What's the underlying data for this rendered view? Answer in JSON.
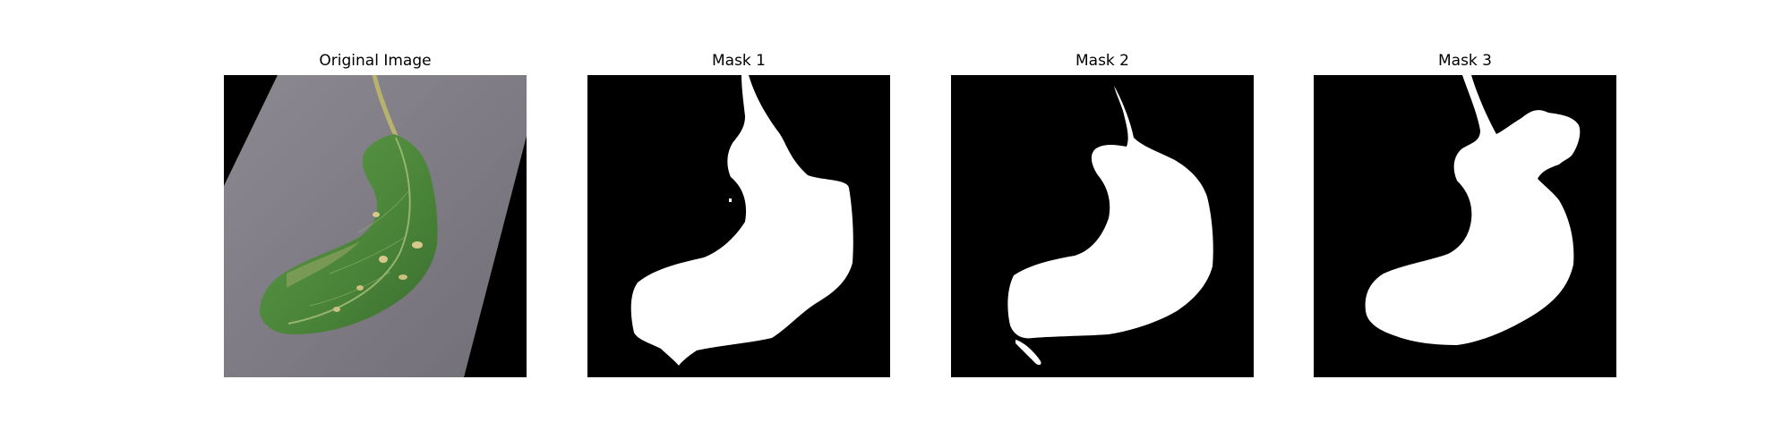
{
  "figure": {
    "panels": [
      {
        "title": "Original Image"
      },
      {
        "title": "Mask 1"
      },
      {
        "title": "Mask 2"
      },
      {
        "title": "Mask 3"
      }
    ]
  },
  "colors": {
    "background": "#ffffff",
    "mask_background": "#000000",
    "mask_foreground": "#ffffff",
    "paper": "#7f7c84",
    "leaf": "#4e8a3e",
    "leaf_dark": "#3c6f30",
    "stem": "#b9b46a",
    "spot": "#d7c98a"
  }
}
